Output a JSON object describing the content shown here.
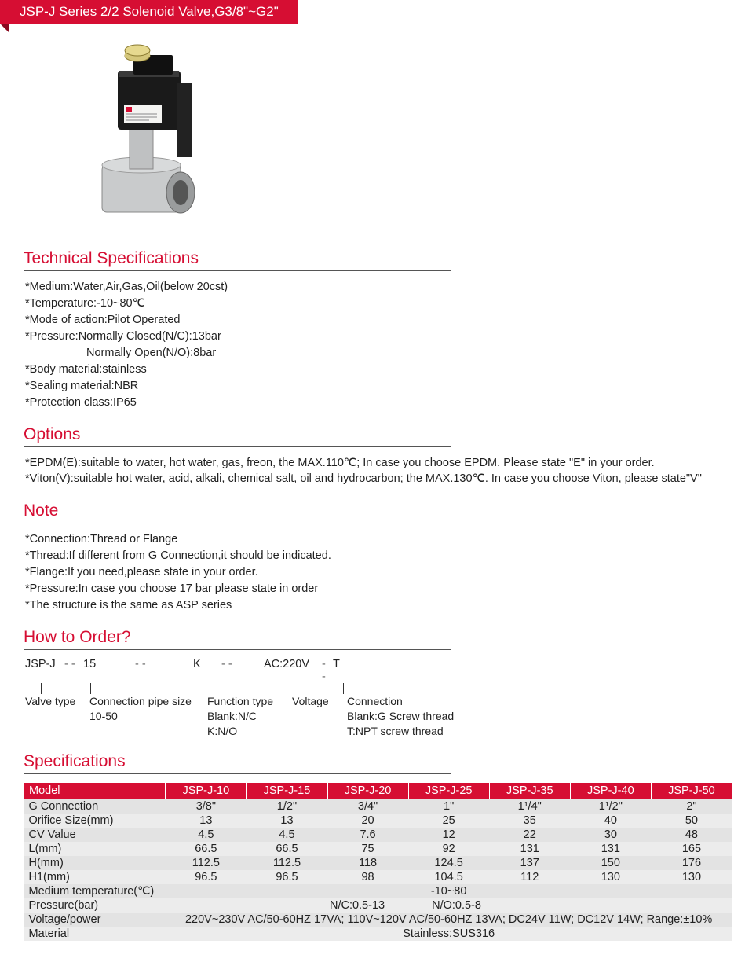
{
  "banner": {
    "title": "JSP-J Series 2/2 Solenoid Valve,G3/8\"~G2\""
  },
  "sections": {
    "techspec_title": "Technical Specifications",
    "options_title": "Options",
    "note_title": "Note",
    "howto_title": "How to Order?",
    "spec_title": "Specifications"
  },
  "techspec": {
    "l1": "*Medium:Water,Air,Gas,Oil(below 20cst)",
    "l2": "*Temperature:-10~80℃",
    "l3": "*Mode of action:Pilot Operated",
    "l4": "*Pressure:Normally Closed(N/C):13bar",
    "l5": "Normally Open(N/O):8bar",
    "l6": "*Body material:stainless",
    "l7": "*Sealing material:NBR",
    "l8": "*Protection class:IP65"
  },
  "options_text": "*EPDM(E):suitable to water, hot water, gas, freon, the MAX.110℃; In case you  choose EPDM. Please state \"E\" in your order.\n*Viton(V):suitable hot water, acid, alkali, chemical salt, oil and hydrocarbon; the MAX.130℃. In case you choose Viton, please state\"V\"",
  "note": {
    "l1": "*Connection:Thread or Flange",
    "l2": "*Thread:If different from G Connection,it should be indicated.",
    "l3": "*Flange:If you need,please state in your order.",
    "l4": "*Pressure:In case you choose 17 bar please state in order",
    "l5": "*The structure is the same as ASP series"
  },
  "order": {
    "p1": "JSP-J",
    "d1": "- -",
    "p2": "15",
    "d2": "- -",
    "p3": "K",
    "d3": "- -",
    "p4": "AC:220V",
    "d4": "- -",
    "p5": "T",
    "lbl1a": "Valve type",
    "lbl2a": "Connection pipe size",
    "lbl2b": "10-50",
    "lbl3a": "Function type",
    "lbl3b": "Blank:N/C",
    "lbl3c": "K:N/O",
    "lbl4a": "Voltage",
    "lbl5a": "Connection",
    "lbl5b": "Blank:G Screw thread",
    "lbl5c": "T:NPT screw thread"
  },
  "table": {
    "header_bg": "#d60e33",
    "header_fg": "#ffffff",
    "row_bg_odd": "#e3e3e3",
    "row_bg_even": "#ececec",
    "headers": [
      "Model",
      "JSP-J-10",
      "JSP-J-15",
      "JSP-J-20",
      "JSP-J-25",
      "JSP-J-35",
      "JSP-J-40",
      "JSP-J-50"
    ],
    "rows": [
      {
        "label": "G Connection",
        "cells": [
          "3/8\"",
          "1/2\"",
          "3/4\"",
          "1\"",
          "1¹/4\"",
          "1¹/2\"",
          "2\""
        ]
      },
      {
        "label": "Orifice Size(mm)",
        "cells": [
          "13",
          "13",
          "20",
          "25",
          "35",
          "40",
          "50"
        ]
      },
      {
        "label": "CV Value",
        "cells": [
          "4.5",
          "4.5",
          "7.6",
          "12",
          "22",
          "30",
          "48"
        ]
      },
      {
        "label": "L(mm)",
        "cells": [
          "66.5",
          "66.5",
          "75",
          "92",
          "131",
          "131",
          "165"
        ]
      },
      {
        "label": "H(mm)",
        "cells": [
          "112.5",
          "112.5",
          "118",
          "124.5",
          "137",
          "150",
          "176"
        ]
      },
      {
        "label": "H1(mm)",
        "cells": [
          "96.5",
          "96.5",
          "98",
          "104.5",
          "112",
          "130",
          "130"
        ]
      }
    ],
    "span_rows": [
      {
        "label": "Medium temperature(℃)",
        "value": "-10~80"
      },
      {
        "label": "Pressure(bar)",
        "left": "N/C:0.5-13",
        "right": "N/O:0.5-8"
      },
      {
        "label": "Voltage/power",
        "value": "220V~230V AC/50-60HZ 17VA; 110V~120V AC/50-60HZ 13VA; DC24V 11W; DC12V 14W; Range:±10%"
      },
      {
        "label": "Material",
        "value": "Stainless:SUS316"
      }
    ]
  }
}
